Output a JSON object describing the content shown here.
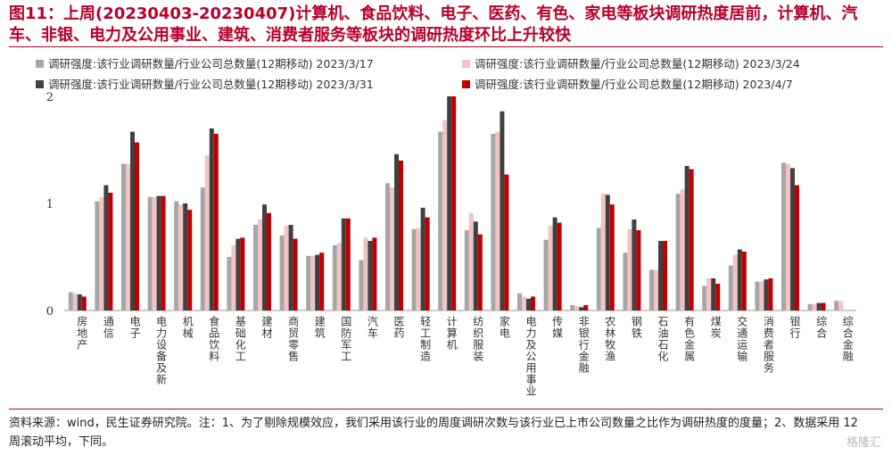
{
  "title": "图11：上周(20230403-20230407)计算机、食品饮料、电子、医药、有色、家电等板块调研热度居前，计算机、汽车、非银、电力及公用事业、建筑、消费者服务等板块的调研热度环比上升较快",
  "source_note": "资料来源：wind，民生证券研究院。注：1、为了剔除规模效应，我们采用该行业的周度调研次数与该行业已上市公司数量之比作为调研热度的度量；2、数据采用 12 周滚动平均，下同。",
  "watermark": "格隆汇",
  "colors": {
    "accent": "#b8002b",
    "series": [
      "#a6a6a6",
      "#f2c3c3",
      "#404040",
      "#c00000"
    ]
  },
  "chart_data": {
    "type": "bar",
    "title": "",
    "xlabel": "",
    "ylabel": "",
    "ylim": [
      0,
      2
    ],
    "yticks": [
      0,
      1,
      2
    ],
    "legend_position": "top",
    "grid": false,
    "categories": [
      "房地产",
      "通信",
      "电子",
      "电力设备及新",
      "机械",
      "食品饮料",
      "基础化工",
      "建材",
      "商贸零售",
      "建筑",
      "国防军工",
      "汽车",
      "医药",
      "轻工制造",
      "计算机",
      "纺织服装",
      "家电",
      "电力及公用事业",
      "传媒",
      "非银行金融",
      "农林牧渔",
      "钢铁",
      "石油石化",
      "有色金属",
      "煤炭",
      "交通运输",
      "消费者服务",
      "银行",
      "综合",
      "综合金融"
    ],
    "series": [
      {
        "name": "调研强度:该行业调研数量/行业公司总数量(12期移动) 2023/3/17",
        "values": [
          0.17,
          1.02,
          1.37,
          1.06,
          1.02,
          1.15,
          0.5,
          0.8,
          0.7,
          0.51,
          0.61,
          0.47,
          1.19,
          0.76,
          1.67,
          0.75,
          1.65,
          0.16,
          0.66,
          0.05,
          0.77,
          0.54,
          0.38,
          1.09,
          0.23,
          0.42,
          0.27,
          1.38,
          0.06,
          0.09
        ]
      },
      {
        "name": "调研强度:该行业调研数量/行业公司总数量(12期移动) 2023/3/24",
        "values": [
          0.16,
          1.06,
          1.37,
          1.06,
          0.99,
          1.45,
          0.61,
          0.85,
          0.79,
          0.51,
          0.63,
          0.68,
          1.15,
          0.77,
          1.78,
          0.91,
          1.67,
          0.13,
          0.79,
          0.04,
          1.09,
          0.76,
          0.38,
          1.13,
          0.3,
          0.52,
          0.27,
          1.37,
          0.06,
          0.09
        ]
      },
      {
        "name": "调研强度:该行业调研数量/行业公司总数量(12期移动) 2023/3/31",
        "values": [
          0.15,
          1.17,
          1.67,
          1.07,
          1.0,
          1.7,
          0.67,
          0.99,
          0.8,
          0.52,
          0.86,
          0.65,
          1.46,
          0.96,
          2.0,
          0.83,
          1.86,
          0.11,
          0.87,
          0.03,
          1.08,
          0.85,
          0.65,
          1.35,
          0.3,
          0.57,
          0.29,
          1.33,
          0.07,
          0
        ]
      },
      {
        "name": "调研强度:该行业调研数量/行业公司总数量(12期移动) 2023/4/7",
        "values": [
          0.13,
          1.1,
          1.57,
          1.07,
          0.94,
          1.65,
          0.68,
          0.91,
          0.67,
          0.54,
          0.86,
          0.68,
          1.4,
          0.87,
          2.0,
          0.71,
          1.27,
          0.13,
          0.82,
          0.05,
          0.99,
          0.75,
          0.65,
          1.32,
          0.25,
          0.55,
          0.3,
          1.17,
          0.07,
          0
        ]
      }
    ]
  }
}
